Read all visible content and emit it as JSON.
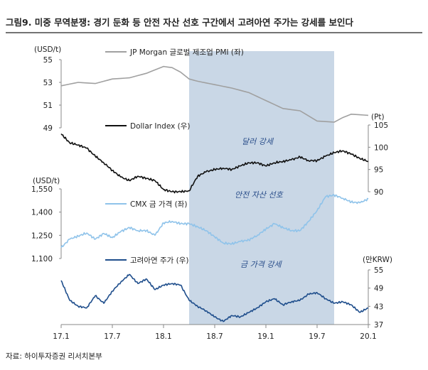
{
  "figure": {
    "title": "그림9. 미중 무역분쟁: 경기 둔화 등 안전 자산 선호 구간에서 고려아연 주가는 강세를 보인다",
    "source": "자료: 하이투자증권 리서치본부",
    "highlight_period": [
      "18.4",
      "19.9"
    ]
  },
  "colors": {
    "pmi": "#a0a0a0",
    "dollar": "#111111",
    "gold": "#8fc3ea",
    "korea_zinc": "#1f4e8c",
    "shade": "#c9d7e6",
    "annotation": "#2a4e8a"
  },
  "annotations": [
    "달러 강세",
    "안전 자산 선호",
    "금 가격 강세"
  ],
  "chart_data": [
    {
      "type": "line",
      "name": "JP Morgan 글로벌 제조업 PMI (좌)",
      "legend_label": "JP Morgan 글로벌 제조업 PMI (좌)",
      "unit_label": "(USD/t)",
      "axis": "left",
      "ylim": [
        49,
        55
      ],
      "yticks": [
        49,
        51,
        53,
        55
      ],
      "x": [
        "17.1",
        "17.3",
        "17.5",
        "17.7",
        "17.9",
        "17.11",
        "18.1",
        "18.2",
        "18.3",
        "18.4",
        "18.5",
        "18.7",
        "18.9",
        "18.11",
        "19.1",
        "19.3",
        "19.5",
        "19.7",
        "19.9",
        "19.10",
        "19.11",
        "20.1"
      ],
      "values": [
        52.7,
        53.0,
        52.9,
        53.3,
        53.4,
        53.8,
        54.4,
        54.3,
        53.9,
        53.3,
        53.1,
        52.8,
        52.5,
        52.1,
        51.4,
        50.7,
        50.5,
        49.6,
        49.5,
        49.9,
        50.2,
        50.1
      ]
    },
    {
      "type": "line",
      "name": "Dollar Index (우)",
      "legend_label": "Dollar Index (우)",
      "unit_label": "(Pt)",
      "axis": "right",
      "ylim": [
        90,
        105
      ],
      "yticks": [
        90,
        95,
        100,
        105
      ],
      "x": [
        "17.1",
        "17.2",
        "17.3",
        "17.4",
        "17.5",
        "17.6",
        "17.7",
        "17.8",
        "17.9",
        "17.10",
        "17.11",
        "17.12",
        "18.1",
        "18.2",
        "18.3",
        "18.4",
        "18.5",
        "18.6",
        "18.7",
        "18.8",
        "18.9",
        "18.10",
        "18.11",
        "18.12",
        "19.1",
        "19.2",
        "19.3",
        "19.4",
        "19.5",
        "19.6",
        "19.7",
        "19.8",
        "19.9",
        "19.10",
        "19.11",
        "19.12",
        "20.1"
      ],
      "values": [
        103.0,
        101.0,
        100.5,
        99.8,
        98.0,
        96.5,
        94.8,
        93.3,
        92.5,
        93.5,
        93.0,
        92.5,
        90.5,
        90.0,
        90.0,
        90.2,
        93.5,
        94.5,
        95.0,
        95.3,
        95.0,
        95.8,
        96.5,
        96.5,
        95.8,
        96.5,
        96.8,
        97.2,
        97.8,
        97.0,
        97.0,
        98.0,
        98.8,
        99.2,
        98.5,
        97.5,
        96.8
      ]
    },
    {
      "type": "line",
      "name": "CMX 금 가격 (좌)",
      "legend_label": "CMX 금 가격 (좌)",
      "unit_label": "(USD/t)",
      "axis": "left",
      "ylim": [
        1100,
        1550
      ],
      "yticks": [
        1100,
        1250,
        1400,
        1550
      ],
      "x": [
        "17.1",
        "17.2",
        "17.3",
        "17.4",
        "17.5",
        "17.6",
        "17.7",
        "17.8",
        "17.9",
        "17.10",
        "17.11",
        "17.12",
        "18.1",
        "18.2",
        "18.3",
        "18.4",
        "18.5",
        "18.6",
        "18.7",
        "18.8",
        "18.9",
        "18.10",
        "18.11",
        "18.12",
        "19.1",
        "19.2",
        "19.3",
        "19.4",
        "19.5",
        "19.6",
        "19.7",
        "19.8",
        "19.9",
        "19.10",
        "19.11",
        "19.12",
        "20.1"
      ],
      "values": [
        1170,
        1225,
        1245,
        1265,
        1225,
        1262,
        1235,
        1275,
        1300,
        1280,
        1280,
        1250,
        1330,
        1340,
        1325,
        1325,
        1305,
        1280,
        1240,
        1200,
        1195,
        1210,
        1220,
        1250,
        1290,
        1325,
        1300,
        1280,
        1280,
        1340,
        1410,
        1500,
        1510,
        1490,
        1465,
        1460,
        1485
      ]
    },
    {
      "type": "line",
      "name": "고려아연 주가 (우)",
      "legend_label": "고려아연 주가 (우)",
      "unit_label": "(만KRW)",
      "axis": "right",
      "ylim": [
        37,
        55
      ],
      "yticks": [
        37,
        43,
        49,
        55
      ],
      "x": [
        "17.1",
        "17.2",
        "17.3",
        "17.4",
        "17.5",
        "17.6",
        "17.7",
        "17.8",
        "17.9",
        "17.10",
        "17.11",
        "17.12",
        "18.1",
        "18.2",
        "18.3",
        "18.4",
        "18.5",
        "18.6",
        "18.7",
        "18.8",
        "18.9",
        "18.10",
        "18.11",
        "18.12",
        "19.1",
        "19.2",
        "19.3",
        "19.4",
        "19.5",
        "19.6",
        "19.7",
        "19.8",
        "19.9",
        "19.10",
        "19.11",
        "19.12",
        "20.1"
      ],
      "values": [
        51.5,
        45.0,
        43.0,
        42.5,
        46.5,
        44.0,
        48.0,
        51.0,
        53.5,
        50.5,
        52.0,
        48.5,
        50.0,
        50.5,
        50.0,
        45.0,
        43.0,
        41.5,
        39.5,
        38.0,
        40.0,
        39.5,
        41.0,
        42.5,
        44.5,
        45.5,
        43.5,
        44.5,
        45.0,
        47.0,
        47.5,
        45.5,
        44.0,
        44.5,
        43.5,
        41.0,
        42.5
      ]
    }
  ],
  "x_axis": {
    "ticks": [
      "17.1",
      "17.7",
      "18.1",
      "18.7",
      "19.1",
      "19.7",
      "20.1"
    ]
  }
}
